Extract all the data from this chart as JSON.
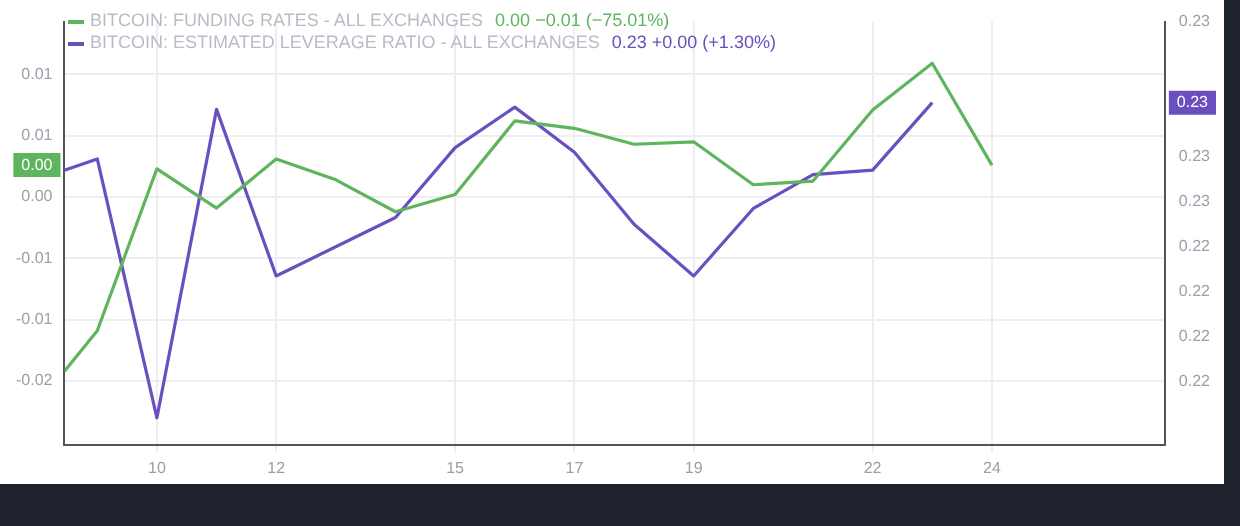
{
  "chart_data": {
    "type": "line",
    "legend": "top left",
    "grid": true,
    "marker": "none",
    "line_style": "solid",
    "xlim": [
      8.45,
      26.9
    ],
    "xticks": [
      10,
      12,
      15,
      17,
      19,
      22,
      24
    ],
    "ylim": [
      -0.0202,
      0.0143
    ],
    "yticks": [
      {
        "value": 0.01,
        "label": "0.01"
      },
      {
        "value": 0.005,
        "label": "0.01"
      },
      {
        "value": 0,
        "label": "0.00"
      },
      {
        "value": -0.005,
        "label": "-0.01"
      },
      {
        "value": -0.01,
        "label": "-0.01"
      },
      {
        "value": -0.015,
        "label": "-0.02"
      }
    ],
    "y2lim": [
      0.2152,
      0.234
    ],
    "y2ticks": [
      {
        "value": 0.234,
        "label": "0.23"
      },
      {
        "value": 0.228,
        "label": "0.23"
      },
      {
        "value": 0.226,
        "label": "0.23"
      },
      {
        "value": 0.224,
        "label": "0.22"
      },
      {
        "value": 0.222,
        "label": "0.22"
      },
      {
        "value": 0.22,
        "label": "0.22"
      },
      {
        "value": 0.218,
        "label": "0.22"
      }
    ],
    "series": [
      {
        "name": "BITCOIN: FUNDING RATES - ALL EXCHANGES",
        "color": "#5eb55e",
        "x": [
          8.45,
          9,
          10,
          11,
          12,
          13,
          14,
          15,
          16,
          17,
          18,
          19,
          20,
          21,
          22,
          23,
          24
        ],
        "values": [
          -0.0142,
          -0.0109,
          0.0023,
          -0.0009,
          0.0031,
          0.0014,
          -0.0012,
          0.0002,
          0.0062,
          0.0056,
          0.0043,
          0.0045,
          0.001,
          0.0013,
          0.0071,
          0.0109,
          0.0026
        ]
      },
      {
        "name": "BITCOIN: ESTIMATED LEVERAGE RATIO - ALL EXCHANGES",
        "color": "#6a4fbf",
        "axis": "y2",
        "x": [
          8.45,
          9,
          10,
          11,
          12,
          14,
          15,
          16,
          17,
          18,
          19,
          20,
          21,
          22,
          23
        ],
        "values": [
          0.2274,
          0.2279,
          0.2164,
          0.2301,
          0.2227,
          0.2253,
          0.2284,
          0.2302,
          0.2282,
          0.225,
          0.2227,
          0.2257,
          0.2272,
          0.2274,
          0.2304
        ]
      }
    ],
    "annotations": [
      "0.00 −0.01 (−75.01%)",
      "0.23 +0.00 (+1.30%)",
      "0.00",
      "0.23"
    ]
  }
}
